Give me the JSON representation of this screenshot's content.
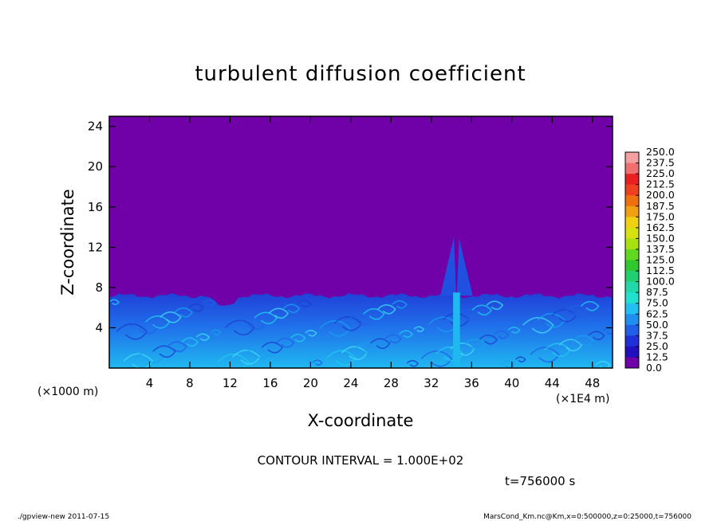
{
  "chart_data": {
    "type": "heatmap",
    "title": "turbulent diffusion coefficient",
    "xlabel": "X-coordinate",
    "ylabel": "Z-coordinate",
    "x_unit_left": "(×1000 m)",
    "x_unit_right": "(×1E4 m)",
    "xlim": [
      0,
      50
    ],
    "ylim": [
      0,
      25
    ],
    "x_ticks": [
      "4",
      "8",
      "12",
      "16",
      "20",
      "24",
      "28",
      "32",
      "36",
      "40",
      "44",
      "48"
    ],
    "y_ticks": [
      "4",
      "8",
      "12",
      "16",
      "20",
      "24"
    ],
    "x_tick_values": [
      4,
      8,
      12,
      16,
      20,
      24,
      28,
      32,
      36,
      40,
      44,
      48
    ],
    "y_tick_values": [
      4,
      8,
      12,
      16,
      20,
      24
    ],
    "boundary_layer_top": 7.5,
    "plume": {
      "x": [
        34,
        35
      ],
      "z_top": 13
    },
    "colorbar": {
      "labels": [
        "250.0",
        "237.5",
        "225.0",
        "212.5",
        "200.0",
        "187.5",
        "175.0",
        "162.5",
        "150.0",
        "137.5",
        "125.0",
        "112.5",
        "100.0",
        "87.5",
        "75.0",
        "62.5",
        "50.0",
        "37.5",
        "25.0",
        "12.5",
        "0.0"
      ],
      "colors": [
        "#f4a0a0",
        "#f07070",
        "#e82020",
        "#f04020",
        "#f07010",
        "#f0a010",
        "#f0d010",
        "#d8e010",
        "#a8e010",
        "#60d820",
        "#30c830",
        "#20d070",
        "#20d8a8",
        "#20e0d0",
        "#20c0f0",
        "#2090f0",
        "#2060e8",
        "#2030d8",
        "#2010c0",
        "#7000a8"
      ]
    },
    "contour_interval": "CONTOUR INTERVAL = 1.000E+02",
    "time_label": "t=756000 s"
  },
  "footer": {
    "left": "./gpview-new   2011-07-15",
    "right": "MarsCond_Km.nc@Km,x=0:500000,z=0:25000,t=756000"
  },
  "colors": {
    "background_field": "#7000a8",
    "boundary_layer": "#2060e8"
  }
}
